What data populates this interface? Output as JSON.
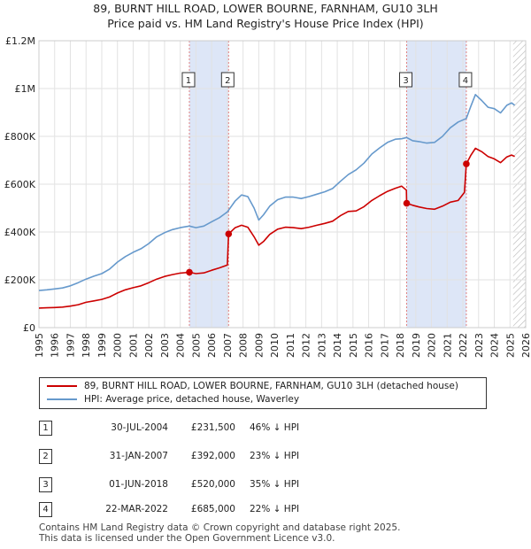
{
  "title": {
    "line1": "89, BURNT HILL ROAD, LOWER BOURNE, FARNHAM, GU10 3LH",
    "line2": "Price paid vs. HM Land Registry's House Price Index (HPI)"
  },
  "colors": {
    "property": "#cc0000",
    "hpi": "#6699cc",
    "shade": "#dde6f7",
    "grid": "#e2e2e2",
    "marker_line": "#e08080"
  },
  "chart_data": {
    "type": "line",
    "xlim": [
      1995,
      2026
    ],
    "ylim": [
      0,
      1200000
    ],
    "x_ticks": [
      1995,
      1996,
      1997,
      1998,
      1999,
      2000,
      2001,
      2002,
      2003,
      2004,
      2005,
      2006,
      2007,
      2008,
      2009,
      2010,
      2011,
      2012,
      2013,
      2014,
      2015,
      2016,
      2017,
      2018,
      2019,
      2020,
      2021,
      2022,
      2023,
      2024,
      2025,
      2026
    ],
    "y_ticks": [
      {
        "value": 0,
        "label": "£0"
      },
      {
        "value": 200000,
        "label": "£200K"
      },
      {
        "value": 400000,
        "label": "£400K"
      },
      {
        "value": 600000,
        "label": "£600K"
      },
      {
        "value": 800000,
        "label": "£800K"
      },
      {
        "value": 1000000,
        "label": "£1M"
      },
      {
        "value": 1200000,
        "label": "£1.2M"
      }
    ],
    "shaded_ranges": [
      [
        2004.58,
        2007.08
      ],
      [
        2018.42,
        2022.22
      ]
    ],
    "hatch_from": 2025.2,
    "series": [
      {
        "name": "89, BURNT HILL ROAD, LOWER BOURNE, FARNHAM, GU10 3LH (detached house)",
        "color": "#cc0000",
        "points": [
          [
            1995,
            82000
          ],
          [
            1995.5,
            83000
          ],
          [
            1996,
            84000
          ],
          [
            1996.5,
            86000
          ],
          [
            1997,
            90000
          ],
          [
            1997.5,
            96000
          ],
          [
            1998,
            106000
          ],
          [
            1998.5,
            112000
          ],
          [
            1999,
            118000
          ],
          [
            1999.5,
            128000
          ],
          [
            2000,
            145000
          ],
          [
            2000.5,
            158000
          ],
          [
            2001,
            167000
          ],
          [
            2001.5,
            175000
          ],
          [
            2002,
            188000
          ],
          [
            2002.5,
            203000
          ],
          [
            2003,
            214000
          ],
          [
            2003.5,
            222000
          ],
          [
            2004,
            228000
          ],
          [
            2004.58,
            231500
          ],
          [
            2005,
            226000
          ],
          [
            2005.5,
            229000
          ],
          [
            2006,
            240000
          ],
          [
            2006.5,
            250000
          ],
          [
            2007.0,
            262000
          ],
          [
            2007.08,
            392000
          ],
          [
            2007.5,
            418000
          ],
          [
            2007.9,
            428000
          ],
          [
            2008.3,
            420000
          ],
          [
            2008.7,
            380000
          ],
          [
            2009.0,
            345000
          ],
          [
            2009.3,
            360000
          ],
          [
            2009.7,
            390000
          ],
          [
            2010.2,
            412000
          ],
          [
            2010.7,
            420000
          ],
          [
            2011.2,
            418000
          ],
          [
            2011.7,
            414000
          ],
          [
            2012.2,
            420000
          ],
          [
            2012.7,
            428000
          ],
          [
            2013.2,
            436000
          ],
          [
            2013.7,
            445000
          ],
          [
            2014.2,
            468000
          ],
          [
            2014.7,
            486000
          ],
          [
            2015.2,
            488000
          ],
          [
            2015.7,
            506000
          ],
          [
            2016.2,
            532000
          ],
          [
            2016.7,
            552000
          ],
          [
            2017.2,
            570000
          ],
          [
            2017.7,
            583000
          ],
          [
            2018.1,
            592000
          ],
          [
            2018.4,
            575000
          ],
          [
            2018.42,
            520000
          ],
          [
            2018.8,
            512000
          ],
          [
            2019.2,
            505000
          ],
          [
            2019.7,
            498000
          ],
          [
            2020.2,
            495000
          ],
          [
            2020.7,
            508000
          ],
          [
            2021.2,
            525000
          ],
          [
            2021.7,
            532000
          ],
          [
            2022.1,
            566000
          ],
          [
            2022.22,
            685000
          ],
          [
            2022.5,
            720000
          ],
          [
            2022.8,
            750000
          ],
          [
            2023.2,
            736000
          ],
          [
            2023.6,
            716000
          ],
          [
            2024.0,
            706000
          ],
          [
            2024.4,
            690000
          ],
          [
            2024.8,
            714000
          ],
          [
            2025.1,
            722000
          ],
          [
            2025.3,
            716000
          ]
        ]
      },
      {
        "name": "HPI: Average price, detached house, Waverley",
        "color": "#6699cc",
        "points": [
          [
            1995,
            155000
          ],
          [
            1995.5,
            158000
          ],
          [
            1996,
            162000
          ],
          [
            1996.5,
            166000
          ],
          [
            1997,
            175000
          ],
          [
            1997.5,
            188000
          ],
          [
            1998,
            203000
          ],
          [
            1998.5,
            215000
          ],
          [
            1999,
            226000
          ],
          [
            1999.5,
            245000
          ],
          [
            2000,
            274000
          ],
          [
            2000.5,
            297000
          ],
          [
            2001,
            315000
          ],
          [
            2001.5,
            330000
          ],
          [
            2002,
            352000
          ],
          [
            2002.5,
            380000
          ],
          [
            2003,
            397000
          ],
          [
            2003.5,
            410000
          ],
          [
            2004,
            418000
          ],
          [
            2004.58,
            425000
          ],
          [
            2005,
            418000
          ],
          [
            2005.5,
            425000
          ],
          [
            2006,
            443000
          ],
          [
            2006.5,
            460000
          ],
          [
            2007,
            484000
          ],
          [
            2007.5,
            530000
          ],
          [
            2007.9,
            555000
          ],
          [
            2008.3,
            548000
          ],
          [
            2008.7,
            500000
          ],
          [
            2009.0,
            450000
          ],
          [
            2009.3,
            472000
          ],
          [
            2009.7,
            508000
          ],
          [
            2010.2,
            535000
          ],
          [
            2010.7,
            546000
          ],
          [
            2011.2,
            546000
          ],
          [
            2011.7,
            540000
          ],
          [
            2012.2,
            548000
          ],
          [
            2012.7,
            558000
          ],
          [
            2013.2,
            568000
          ],
          [
            2013.7,
            582000
          ],
          [
            2014.2,
            612000
          ],
          [
            2014.7,
            640000
          ],
          [
            2015.2,
            660000
          ],
          [
            2015.7,
            688000
          ],
          [
            2016.2,
            726000
          ],
          [
            2016.7,
            752000
          ],
          [
            2017.2,
            775000
          ],
          [
            2017.7,
            788000
          ],
          [
            2018.1,
            790000
          ],
          [
            2018.42,
            795000
          ],
          [
            2018.8,
            782000
          ],
          [
            2019.2,
            778000
          ],
          [
            2019.7,
            772000
          ],
          [
            2020.2,
            775000
          ],
          [
            2020.7,
            800000
          ],
          [
            2021.2,
            836000
          ],
          [
            2021.7,
            860000
          ],
          [
            2022.22,
            875000
          ],
          [
            2022.5,
            925000
          ],
          [
            2022.8,
            975000
          ],
          [
            2023.2,
            950000
          ],
          [
            2023.6,
            922000
          ],
          [
            2024.0,
            916000
          ],
          [
            2024.4,
            898000
          ],
          [
            2024.8,
            930000
          ],
          [
            2025.1,
            940000
          ],
          [
            2025.3,
            930000
          ]
        ]
      }
    ],
    "sales": [
      {
        "id": "1",
        "x": 2004.58,
        "price": 231500
      },
      {
        "id": "2",
        "x": 2007.08,
        "price": 392000
      },
      {
        "id": "3",
        "x": 2018.42,
        "price": 520000
      },
      {
        "id": "4",
        "x": 2022.22,
        "price": 685000
      }
    ]
  },
  "legend": {
    "property_label": "89, BURNT HILL ROAD, LOWER BOURNE, FARNHAM, GU10 3LH (detached house)",
    "hpi_label": "HPI: Average price, detached house, Waverley"
  },
  "transactions": [
    {
      "id": "1",
      "date": "30-JUL-2004",
      "price": "£231,500",
      "hpi": "46% ↓ HPI"
    },
    {
      "id": "2",
      "date": "31-JAN-2007",
      "price": "£392,000",
      "hpi": "23% ↓ HPI"
    },
    {
      "id": "3",
      "date": "01-JUN-2018",
      "price": "£520,000",
      "hpi": "35% ↓ HPI"
    },
    {
      "id": "4",
      "date": "22-MAR-2022",
      "price": "£685,000",
      "hpi": "22% ↓ HPI"
    }
  ],
  "footer": {
    "line1": "Contains HM Land Registry data © Crown copyright and database right 2025.",
    "line2": "This data is licensed under the Open Government Licence v3.0."
  }
}
